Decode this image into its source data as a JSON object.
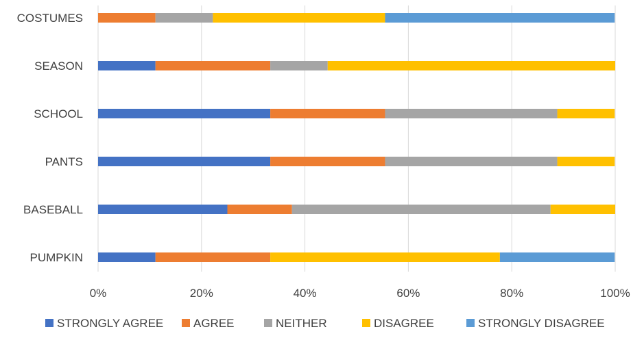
{
  "chart_data": {
    "type": "bar",
    "orientation": "horizontal",
    "stacked": "percent",
    "title": "",
    "xlabel": "",
    "ylabel": "",
    "xlim": [
      0,
      100
    ],
    "grid": true,
    "legend_position": "bottom",
    "categories": [
      "COSTUMES",
      "SEASON",
      "SCHOOL",
      "PANTS",
      "BASEBALL",
      "PUMPKIN"
    ],
    "x_ticks": [
      "0%",
      "20%",
      "40%",
      "60%",
      "80%",
      "100%"
    ],
    "series": [
      {
        "name": "STRONGLY AGREE",
        "color": "#4472C4",
        "values": [
          0,
          11.1,
          33.3,
          33.3,
          25.0,
          11.1
        ]
      },
      {
        "name": "AGREE",
        "color": "#ED7D31",
        "values": [
          11.1,
          22.2,
          22.2,
          22.2,
          12.5,
          22.2
        ]
      },
      {
        "name": "NEITHER",
        "color": "#A5A5A5",
        "values": [
          11.1,
          11.1,
          33.3,
          33.3,
          50.0,
          0
        ]
      },
      {
        "name": "DISAGREE",
        "color": "#FFC000",
        "values": [
          33.3,
          55.6,
          11.1,
          11.1,
          12.5,
          44.4
        ]
      },
      {
        "name": "STRONGLY DISAGREE",
        "color": "#5B9BD5",
        "values": [
          44.4,
          0,
          0,
          0,
          0,
          22.2
        ]
      }
    ]
  }
}
